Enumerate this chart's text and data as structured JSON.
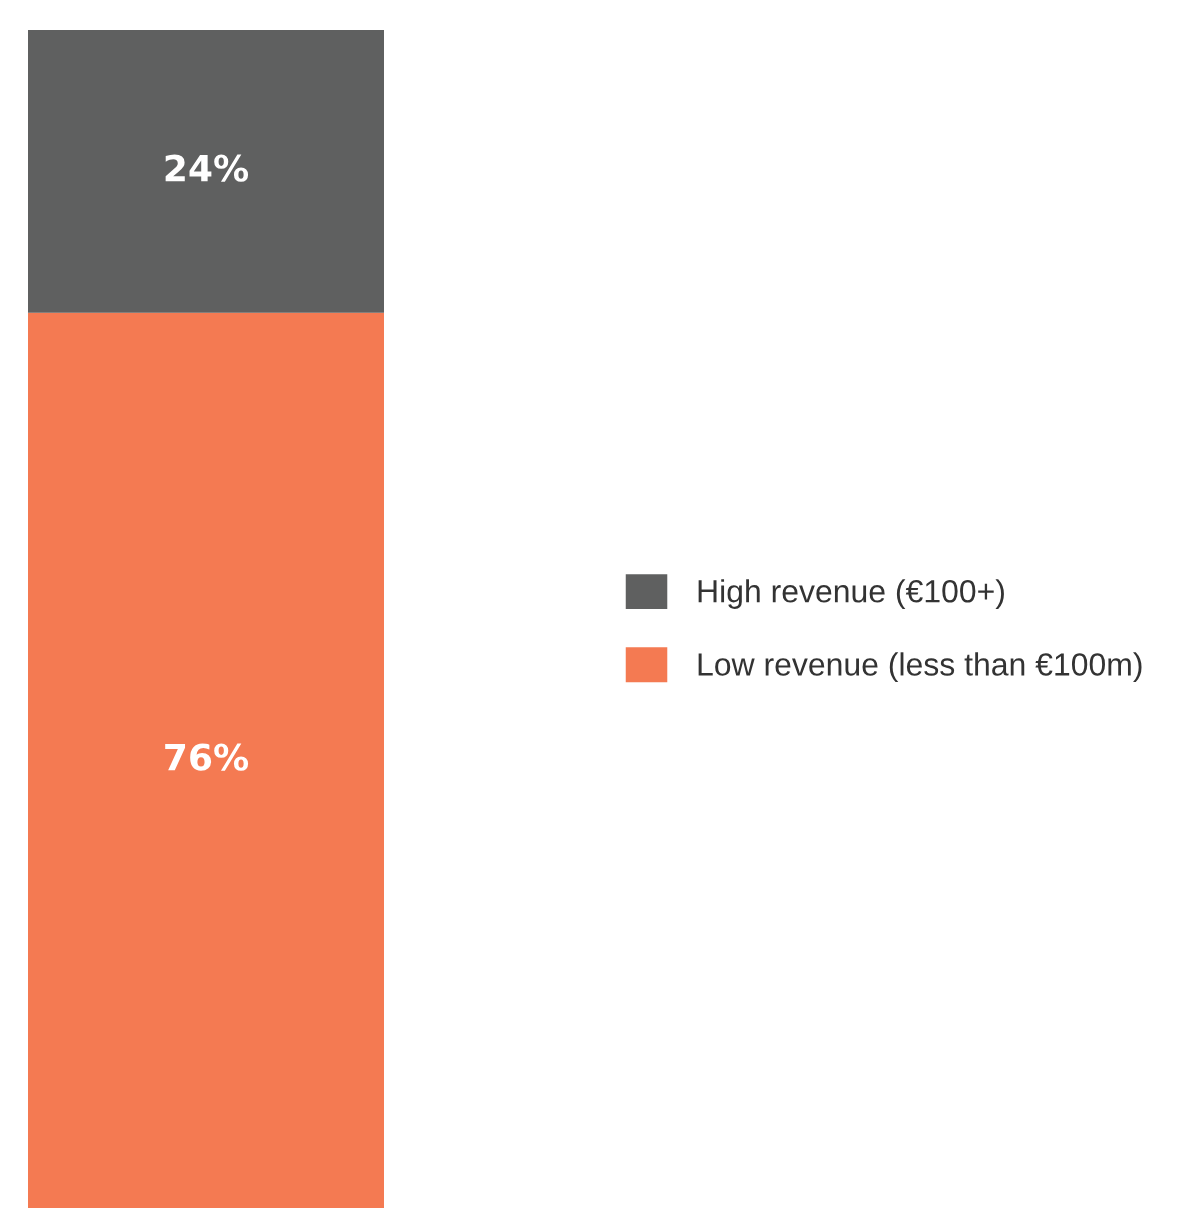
{
  "chart_data": {
    "type": "bar",
    "stacked": true,
    "categories": [
      null
    ],
    "ylim": [
      0,
      100
    ],
    "legend": "right",
    "series": [
      {
        "name": "Low revenue (less than €100m)",
        "color": "#f47a52",
        "values": [
          76
        ],
        "value_labels": [
          "76%"
        ]
      },
      {
        "name": "High revenue (€100+)",
        "color": "#5f6060",
        "values": [
          24
        ],
        "value_labels": [
          "24%"
        ]
      }
    ]
  }
}
